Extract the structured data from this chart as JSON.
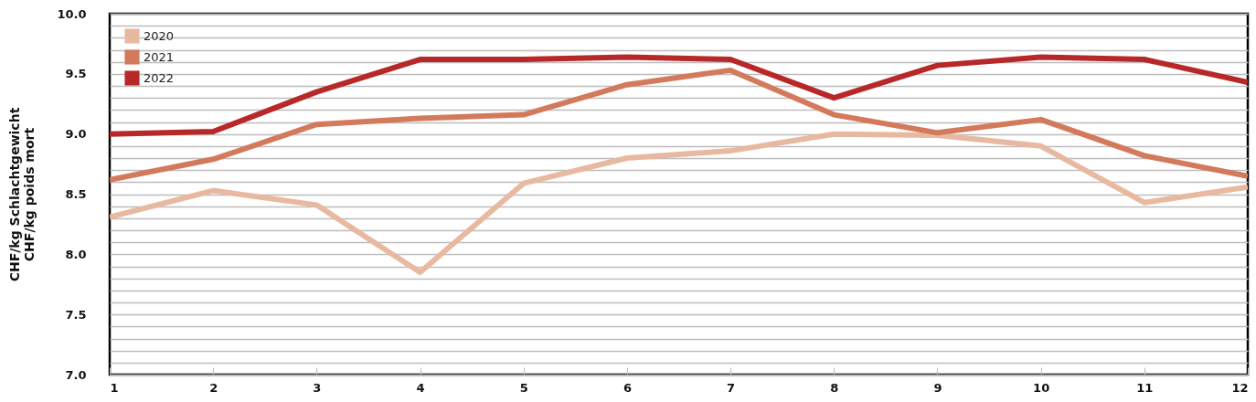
{
  "chart_data": {
    "type": "line",
    "ylabel": "CHF/kg Schlachtgewicht\nCHF/kg poids mort",
    "x": [
      1,
      2,
      3,
      4,
      5,
      6,
      7,
      8,
      9,
      10,
      11,
      12
    ],
    "xlim": [
      1,
      12
    ],
    "xticks": [
      1,
      2,
      3,
      4,
      5,
      6,
      7,
      8,
      9,
      10,
      11,
      12
    ],
    "ylim": [
      7,
      10
    ],
    "yticks": [
      {
        "value": 7,
        "label": "7.0"
      },
      {
        "value": 7.1,
        "label": null
      },
      {
        "value": 7.2,
        "label": null
      },
      {
        "value": 7.3,
        "label": null
      },
      {
        "value": 7.4,
        "label": null
      },
      7.5,
      {
        "value": 7.6,
        "label": null
      },
      {
        "value": 7.7,
        "label": null
      },
      {
        "value": 7.8,
        "label": null
      },
      {
        "value": 7.9,
        "label": null
      },
      {
        "value": 8,
        "label": "8.0"
      },
      {
        "value": 8.1,
        "label": null
      },
      {
        "value": 8.2,
        "label": null
      },
      {
        "value": 8.3,
        "label": null
      },
      {
        "value": 8.4,
        "label": null
      },
      8.5,
      {
        "value": 8.6,
        "label": null
      },
      {
        "value": 8.7,
        "label": null
      },
      {
        "value": 8.8,
        "label": null
      },
      {
        "value": 8.9,
        "label": null
      },
      {
        "value": 9,
        "label": "9.0"
      },
      {
        "value": 9.1,
        "label": null
      },
      {
        "value": 9.2,
        "label": null
      },
      {
        "value": 9.3,
        "label": null
      },
      {
        "value": 9.4,
        "label": null
      },
      9.5,
      {
        "value": 9.6,
        "label": null
      },
      {
        "value": 9.7,
        "label": null
      },
      {
        "value": 9.8,
        "label": null
      },
      {
        "value": 9.9,
        "label": null
      },
      {
        "value": 10,
        "label": "10.0"
      }
    ],
    "grid": "y",
    "legend": "top left",
    "series": [
      {
        "name": "2020",
        "color": "#e8b9a1",
        "values": [
          8.31,
          8.53,
          8.41,
          7.85,
          8.59,
          8.8,
          8.86,
          9.0,
          8.99,
          8.9,
          8.43,
          8.56
        ]
      },
      {
        "name": "2021",
        "color": "#d47a5c",
        "values": [
          8.62,
          8.79,
          9.08,
          9.13,
          9.16,
          9.41,
          9.53,
          9.16,
          9.01,
          9.12,
          8.82,
          8.65
        ]
      },
      {
        "name": "2022",
        "color": "#b82828",
        "values": [
          9.0,
          9.02,
          9.35,
          9.62,
          9.62,
          9.64,
          9.62,
          9.3,
          9.57,
          9.64,
          9.62,
          9.43
        ]
      }
    ]
  }
}
